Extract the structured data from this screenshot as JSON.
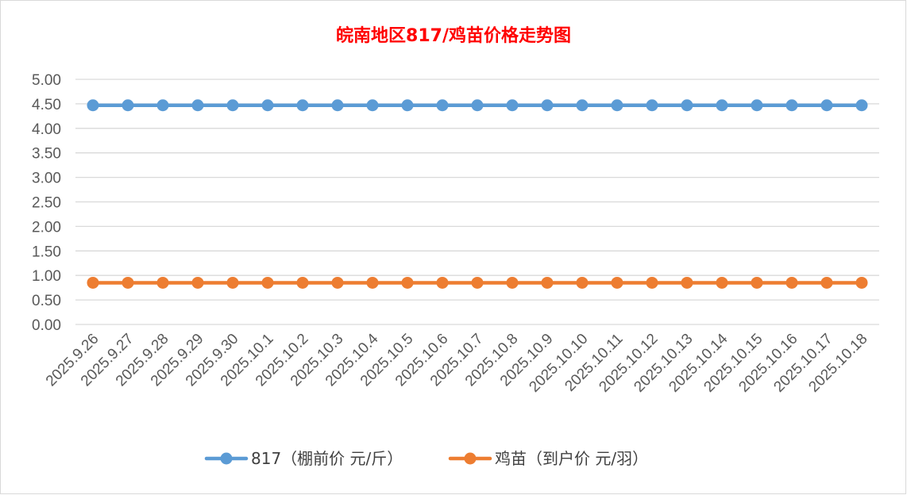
{
  "chart_data": {
    "type": "line",
    "title": "皖南地区817/鸡苗价格走势图",
    "xlabel": "",
    "ylabel": "",
    "categories": [
      "2025.9.26",
      "2025.9.27",
      "2025.9.28",
      "2025.9.29",
      "2025.9.30",
      "2025.10.1",
      "2025.10.2",
      "2025.10.3",
      "2025.10.4",
      "2025.10.5",
      "2025.10.6",
      "2025.10.7",
      "2025.10.8",
      "2025.10.9",
      "2025.10.10",
      "2025.10.11",
      "2025.10.12",
      "2025.10.13",
      "2025.10.14",
      "2025.10.15",
      "2025.10.16",
      "2025.10.17",
      "2025.10.18"
    ],
    "ylim": [
      0,
      5
    ],
    "yticks": [
      "0.00",
      "0.50",
      "1.00",
      "1.50",
      "2.00",
      "2.50",
      "3.00",
      "3.50",
      "4.00",
      "4.50",
      "5.00"
    ],
    "grid": true,
    "legend_position": "bottom",
    "series": [
      {
        "name": "817（棚前价 元/斤）",
        "color": "#5b9bd5",
        "values": [
          4.47,
          4.47,
          4.47,
          4.47,
          4.47,
          4.47,
          4.47,
          4.47,
          4.47,
          4.47,
          4.47,
          4.47,
          4.47,
          4.47,
          4.47,
          4.47,
          4.47,
          4.47,
          4.47,
          4.47,
          4.47,
          4.47,
          4.47
        ]
      },
      {
        "name": "鸡苗（到户价 元/羽）",
        "color": "#ed7d31",
        "values": [
          0.85,
          0.85,
          0.85,
          0.85,
          0.85,
          0.85,
          0.85,
          0.85,
          0.85,
          0.85,
          0.85,
          0.85,
          0.85,
          0.85,
          0.85,
          0.85,
          0.85,
          0.85,
          0.85,
          0.85,
          0.85,
          0.85,
          0.85
        ]
      }
    ]
  }
}
